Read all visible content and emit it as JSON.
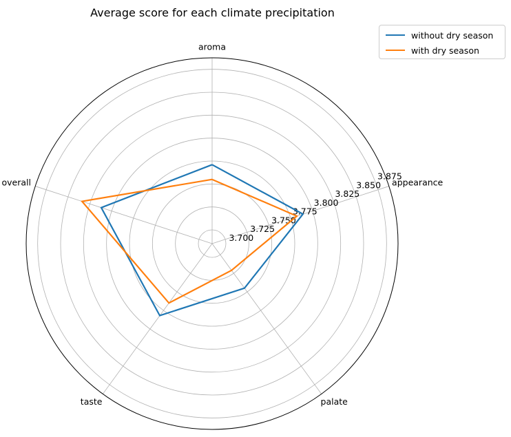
{
  "chart_data": {
    "type": "radar",
    "title": "Average score for each climate precipitation",
    "categories": [
      "aroma",
      "appearance",
      "palate",
      "taste",
      "overall"
    ],
    "radial_ticks": [
      "3.700",
      "3.725",
      "3.750",
      "3.775",
      "3.800",
      "3.825",
      "3.850",
      "3.875"
    ],
    "rlim": [
      3.685,
      3.8875
    ],
    "series": [
      {
        "name": "without dry season",
        "color": "#1f77b4",
        "values": [
          3.771,
          3.789,
          3.745,
          3.782,
          3.812
        ]
      },
      {
        "name": "with dry season",
        "color": "#ff7f0e",
        "values": [
          3.755,
          3.782,
          3.721,
          3.765,
          3.834
        ]
      }
    ],
    "grid": true,
    "legend_position": "upper-right outside"
  }
}
